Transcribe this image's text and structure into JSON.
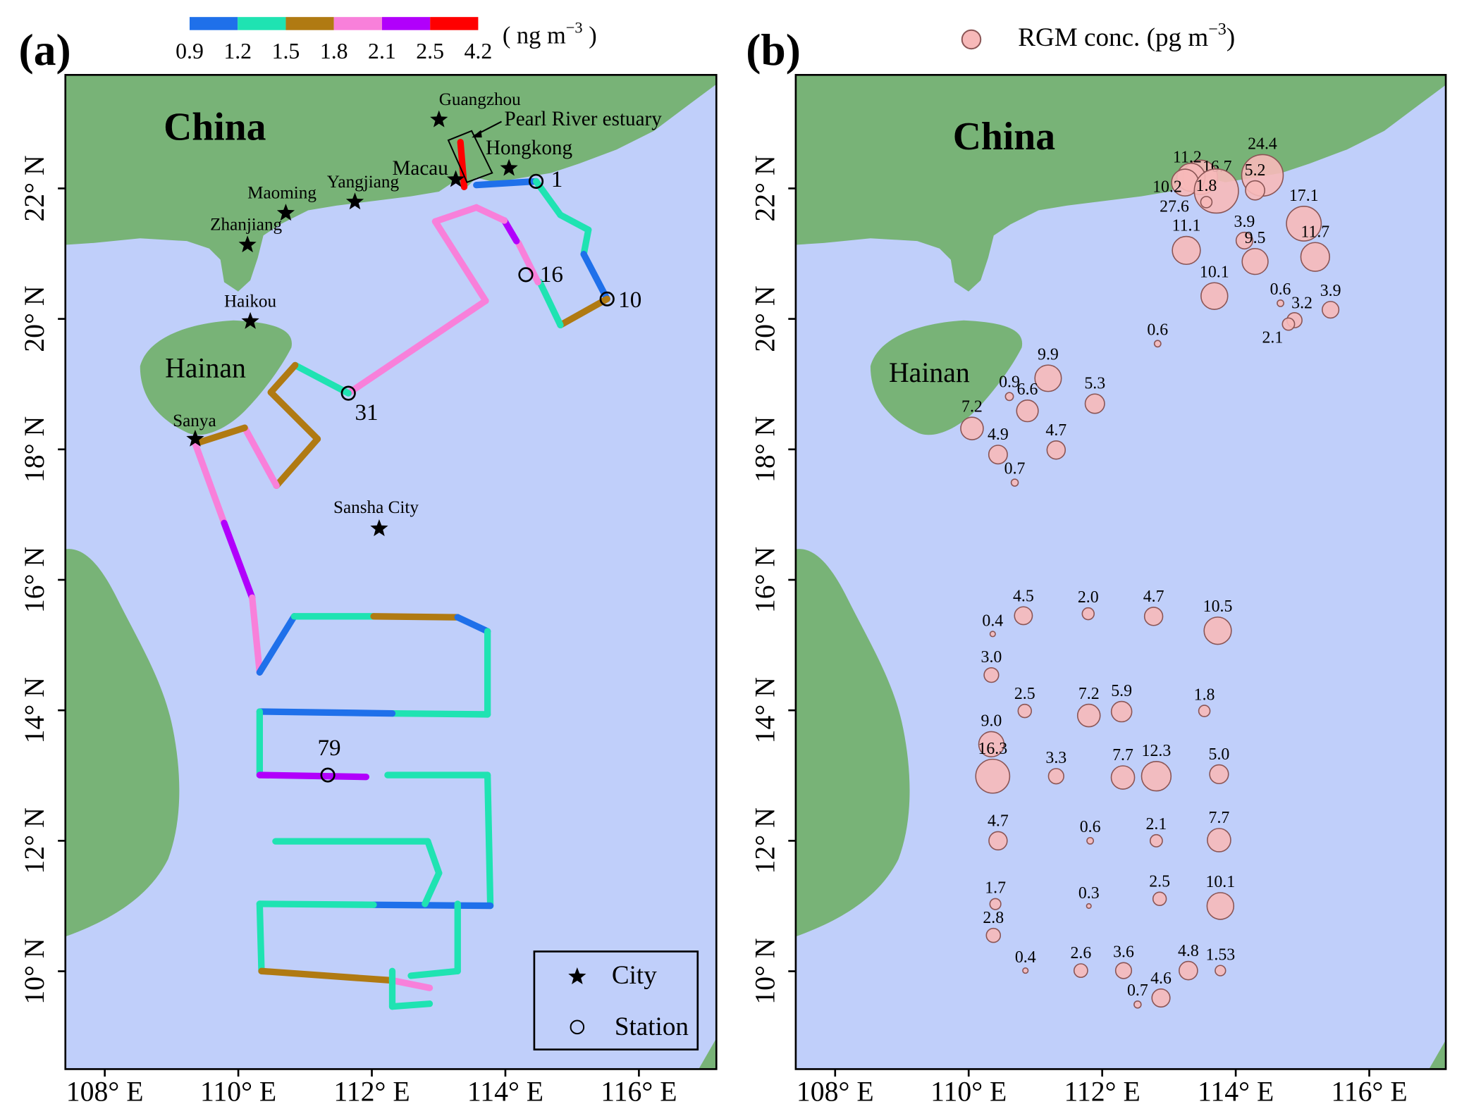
{
  "chart_data": {
    "type": "bubble",
    "xlim": [
      107.41,
      117.16
    ],
    "ylim": [
      8.5,
      23.74
    ],
    "xticks": [
      {
        "value": 108,
        "label": "108° E"
      },
      {
        "value": 110,
        "label": "110° E"
      },
      {
        "value": 112,
        "label": "112° E"
      },
      {
        "value": 114,
        "label": "114° E"
      },
      {
        "value": 116,
        "label": "116° E"
      }
    ],
    "yticks": [
      {
        "value": 10,
        "label": "10° N"
      },
      {
        "value": 12,
        "label": "12° N"
      },
      {
        "value": 14,
        "label": "14° N"
      },
      {
        "value": 16,
        "label": "16° N"
      },
      {
        "value": 18,
        "label": "18° N"
      },
      {
        "value": 20,
        "label": "20° N"
      },
      {
        "value": 22,
        "label": "22° N"
      }
    ],
    "lon": [
      114.4,
      113.47,
      113.33,
      113.24,
      113.71,
      113.56,
      114.29,
      115.02,
      115.19,
      114.13,
      114.29,
      113.26,
      113.68,
      114.67,
      114.88,
      114.79,
      115.42,
      112.83,
      111.19,
      110.61,
      110.88,
      111.89,
      110.05,
      110.44,
      111.31,
      110.69,
      110.82,
      111.79,
      112.77,
      113.73,
      110.36,
      110.34,
      110.84,
      111.8,
      112.29,
      113.53,
      110.34,
      110.36,
      111.31,
      112.31,
      112.81,
      113.75,
      110.44,
      111.82,
      112.81,
      113.75,
      110.4,
      111.8,
      112.86,
      113.77,
      110.37,
      110.85,
      111.68,
      112.32,
      113.29,
      113.77,
      112.53,
      112.88
    ],
    "lat": [
      22.2,
      22.17,
      22.17,
      22.09,
      21.96,
      21.79,
      21.97,
      21.46,
      20.95,
      21.2,
      20.88,
      21.05,
      20.35,
      20.24,
      19.98,
      19.92,
      20.14,
      19.62,
      19.09,
      18.81,
      18.59,
      18.7,
      18.32,
      17.92,
      17.99,
      17.49,
      15.45,
      15.48,
      15.44,
      15.22,
      15.17,
      14.54,
      13.99,
      13.92,
      13.98,
      13.99,
      13.48,
      12.99,
      12.99,
      12.97,
      12.99,
      13.02,
      12.0,
      12.0,
      12.0,
      12.01,
      11.03,
      11.0,
      11.11,
      11.0,
      10.55,
      10.01,
      10.01,
      10.01,
      10.01,
      10.01,
      9.49,
      9.59
    ],
    "values": [
      24.4,
      16.7,
      11.2,
      10.2,
      27.6,
      1.8,
      5.2,
      17.1,
      11.7,
      3.9,
      9.5,
      11.1,
      10.1,
      0.6,
      3.2,
      2.1,
      3.9,
      0.6,
      9.9,
      0.9,
      6.6,
      5.3,
      7.2,
      4.9,
      4.7,
      0.7,
      4.5,
      2.0,
      4.7,
      10.5,
      0.4,
      3.0,
      2.5,
      7.2,
      5.9,
      1.8,
      9.0,
      16.3,
      3.3,
      7.7,
      12.3,
      5.0,
      4.7,
      0.6,
      2.1,
      7.7,
      1.7,
      0.3,
      2.5,
      10.1,
      2.8,
      0.4,
      2.6,
      3.6,
      4.8,
      1.53,
      0.7,
      4.6
    ],
    "value_labels": [
      "24.4",
      "16.7",
      "11.2",
      "10.2",
      "27.6",
      "1.8",
      "5.2",
      "17.1",
      "11.7",
      "3.9",
      "9.5",
      "11.1",
      "10.1",
      "0.6",
      "3.2",
      "2.1",
      "3.9",
      "0.6",
      "9.9",
      "0.9",
      "6.6",
      "5.3",
      "7.2",
      "4.9",
      "4.7",
      "0.7",
      "4.5",
      "2.0",
      "4.7",
      "10.5",
      "0.4",
      "3.0",
      "2.5",
      "7.2",
      "5.9",
      "1.8",
      "9.0",
      "16.3",
      "3.3",
      "7.7",
      "12.3",
      "5.0",
      "4.7",
      "0.6",
      "2.1",
      "7.7",
      "1.7",
      "0.3",
      "2.5",
      "10.1",
      "2.8",
      "0.4",
      "2.6",
      "3.6",
      "4.8",
      "1.53",
      "0.7",
      "4.6"
    ],
    "color": "#f7b9b9",
    "legend": [
      "RGM conc. (pg m",
      "−3",
      ")"
    ]
  },
  "panel_a": {
    "tag": "(a)",
    "country": "China",
    "island": "Hainan",
    "colorbar": {
      "edges": [
        0.9,
        1.2,
        1.5,
        1.8,
        2.1,
        2.5,
        4.2
      ],
      "colors": [
        "#1f70ea",
        "#1fe3b2",
        "#b07a12",
        "#f880da",
        "#b100fb",
        "#ff0000"
      ],
      "unit": [
        "( ng m",
        "−3",
        " )"
      ]
    },
    "cities": [
      "Guangzhou",
      "Pearl River estuary",
      "Hongkong",
      "Macau",
      "Yangjiang",
      "Maoming",
      "Zhanjiang",
      "Haikou",
      "Sanya",
      "Sansha City"
    ],
    "stations": [
      "1",
      "16",
      "10",
      "31",
      "79"
    ],
    "legend": [
      "City",
      "Station"
    ]
  },
  "panel_b": {
    "tag": "(b)",
    "country": "China",
    "island": "Hainan"
  }
}
